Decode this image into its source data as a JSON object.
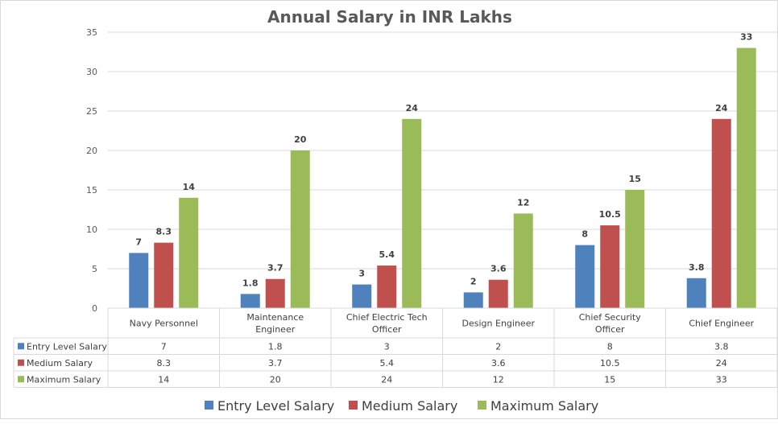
{
  "chart_data": {
    "type": "bar",
    "title": "Annual Salary in INR Lakhs",
    "xlabel": "",
    "ylabel": "",
    "ylim": [
      0,
      35
    ],
    "yticks": [
      0,
      5,
      10,
      15,
      20,
      25,
      30,
      35
    ],
    "grid": true,
    "legend_position": "bottom",
    "data_table": true,
    "categories": [
      [
        "Navy Personnel"
      ],
      [
        "Maintenance",
        "Engineer"
      ],
      [
        "Chief Electric Tech",
        "Officer"
      ],
      [
        "Design Engineer"
      ],
      [
        "Chief Security",
        "Officer"
      ],
      [
        "Chief Engineer"
      ]
    ],
    "series": [
      {
        "name": "Entry Level Salary",
        "color": "#4f81bd",
        "values": [
          7,
          1.8,
          3,
          2,
          8,
          3.8
        ]
      },
      {
        "name": "Medium Salary",
        "color": "#c0504d",
        "values": [
          8.3,
          3.7,
          5.4,
          3.6,
          10.5,
          24
        ]
      },
      {
        "name": "Maximum Salary",
        "color": "#9bbb59",
        "values": [
          14,
          20,
          24,
          12,
          15,
          33
        ]
      }
    ]
  }
}
